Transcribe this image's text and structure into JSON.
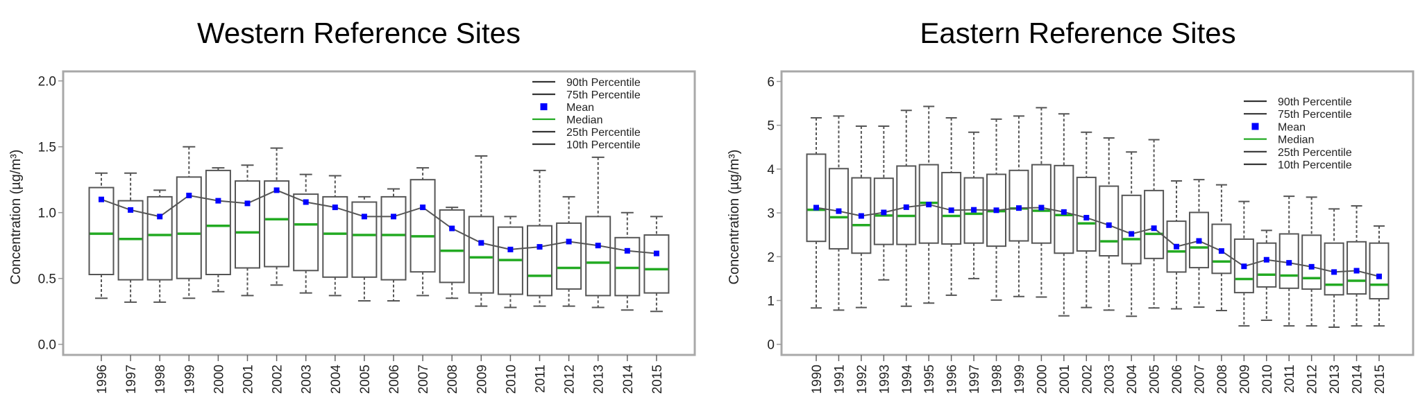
{
  "chart_data": [
    {
      "type": "box",
      "title": "Western Reference Sites",
      "xlabel": "",
      "ylabel": "Concentration (µg/m³)",
      "ylim": [
        -0.05,
        2.05
      ],
      "yticks": [
        "0.0",
        "0.5",
        "1.0",
        "1.5",
        "2.0"
      ],
      "ytick_values": [
        0,
        0.5,
        1.0,
        1.5,
        2.0
      ],
      "grid": false,
      "legend_position": "top-right",
      "legend": [
        {
          "label": "90th Percentile",
          "symbol": "line",
          "color": "#333333"
        },
        {
          "label": "75th Percentile",
          "symbol": "line",
          "color": "#333333"
        },
        {
          "label": "Mean",
          "symbol": "square",
          "color": "#0000ff"
        },
        {
          "label": "Median",
          "symbol": "line",
          "color": "#22aa22"
        },
        {
          "label": "25th Percentile",
          "symbol": "line",
          "color": "#333333"
        },
        {
          "label": "10th Percentile",
          "symbol": "line",
          "color": "#333333"
        }
      ],
      "categories": [
        "1996",
        "1997",
        "1998",
        "1999",
        "2000",
        "2001",
        "2002",
        "2003",
        "2004",
        "2005",
        "2006",
        "2007",
        "2008",
        "2009",
        "2010",
        "2011",
        "2012",
        "2013",
        "2014",
        "2015"
      ],
      "p90": [
        1.3,
        1.3,
        1.17,
        1.5,
        1.34,
        1.36,
        1.49,
        1.29,
        1.28,
        1.12,
        1.18,
        1.34,
        1.04,
        1.43,
        0.97,
        1.32,
        1.12,
        1.42,
        1.0,
        0.97
      ],
      "p75": [
        1.19,
        1.09,
        1.12,
        1.27,
        1.32,
        1.24,
        1.24,
        1.14,
        1.12,
        1.08,
        1.12,
        1.25,
        1.02,
        0.97,
        0.89,
        0.9,
        0.92,
        0.97,
        0.81,
        0.83
      ],
      "mean": [
        1.1,
        1.02,
        0.97,
        1.13,
        1.09,
        1.07,
        1.17,
        1.08,
        1.04,
        0.97,
        0.97,
        1.04,
        0.88,
        0.77,
        0.72,
        0.74,
        0.78,
        0.75,
        0.71,
        0.69
      ],
      "median": [
        0.84,
        0.8,
        0.83,
        0.84,
        0.9,
        0.85,
        0.95,
        0.91,
        0.84,
        0.83,
        0.83,
        0.82,
        0.71,
        0.66,
        0.64,
        0.52,
        0.58,
        0.62,
        0.58,
        0.57
      ],
      "p25": [
        0.53,
        0.49,
        0.49,
        0.5,
        0.53,
        0.58,
        0.59,
        0.56,
        0.51,
        0.51,
        0.49,
        0.55,
        0.47,
        0.39,
        0.38,
        0.37,
        0.42,
        0.37,
        0.37,
        0.39
      ],
      "p10": [
        0.35,
        0.32,
        0.32,
        0.35,
        0.4,
        0.37,
        0.45,
        0.39,
        0.37,
        0.33,
        0.33,
        0.37,
        0.35,
        0.29,
        0.28,
        0.29,
        0.29,
        0.28,
        0.26,
        0.25
      ]
    },
    {
      "type": "box",
      "title": "Eastern Reference Sites",
      "xlabel": "",
      "ylabel": "Concentration (µg/m³)",
      "ylim": [
        -0.25,
        6.25
      ],
      "yticks": [
        "0",
        "1",
        "2",
        "3",
        "4",
        "5",
        "6"
      ],
      "ytick_values": [
        0,
        1,
        2,
        3,
        4,
        5,
        6
      ],
      "grid": false,
      "legend_position": "top-right",
      "legend": [
        {
          "label": "90th Percentile",
          "symbol": "line",
          "color": "#333333"
        },
        {
          "label": "75th Percentile",
          "symbol": "line",
          "color": "#333333"
        },
        {
          "label": "Mean",
          "symbol": "square",
          "color": "#0000ff"
        },
        {
          "label": "Median",
          "symbol": "line",
          "color": "#22aa22"
        },
        {
          "label": "25th Percentile",
          "symbol": "line",
          "color": "#333333"
        },
        {
          "label": "10th Percentile",
          "symbol": "line",
          "color": "#333333"
        }
      ],
      "categories": [
        "1990",
        "1991",
        "1992",
        "1993",
        "1994",
        "1995",
        "1996",
        "1997",
        "1998",
        "1999",
        "2000",
        "2001",
        "2002",
        "2003",
        "2004",
        "2005",
        "2006",
        "2007",
        "2008",
        "2009",
        "2010",
        "2011",
        "2012",
        "2013",
        "2014",
        "2015"
      ],
      "p90": [
        5.17,
        5.21,
        4.98,
        4.98,
        5.34,
        5.43,
        5.17,
        4.84,
        5.14,
        5.21,
        5.4,
        5.26,
        4.84,
        4.71,
        4.39,
        4.67,
        3.73,
        3.76,
        3.64,
        3.26,
        2.6,
        3.38,
        3.36,
        3.09,
        3.16,
        2.7
      ],
      "p75": [
        4.34,
        4.01,
        3.8,
        3.79,
        4.07,
        4.1,
        3.92,
        3.8,
        3.88,
        3.97,
        4.1,
        4.08,
        3.81,
        3.61,
        3.4,
        3.51,
        2.81,
        3.01,
        2.74,
        2.4,
        2.31,
        2.52,
        2.49,
        2.31,
        2.34,
        2.31
      ],
      "mean": [
        3.12,
        3.04,
        2.93,
        3.01,
        3.13,
        3.19,
        3.06,
        3.07,
        3.06,
        3.11,
        3.12,
        3.02,
        2.89,
        2.72,
        2.52,
        2.65,
        2.23,
        2.36,
        2.13,
        1.78,
        1.93,
        1.86,
        1.77,
        1.65,
        1.68,
        1.55
      ],
      "median": [
        3.07,
        2.9,
        2.72,
        2.94,
        2.93,
        3.23,
        2.93,
        2.98,
        3.04,
        3.1,
        3.05,
        2.95,
        2.76,
        2.35,
        2.4,
        2.52,
        2.12,
        2.21,
        1.89,
        1.49,
        1.59,
        1.57,
        1.51,
        1.36,
        1.45,
        1.36
      ],
      "p25": [
        2.35,
        2.18,
        2.08,
        2.28,
        2.28,
        2.31,
        2.29,
        2.31,
        2.24,
        2.36,
        2.31,
        2.08,
        2.13,
        2.02,
        1.84,
        1.96,
        1.65,
        1.75,
        1.62,
        1.18,
        1.31,
        1.28,
        1.26,
        1.13,
        1.15,
        1.04
      ],
      "p10": [
        0.83,
        0.78,
        0.84,
        1.47,
        0.87,
        0.94,
        1.12,
        1.5,
        1.01,
        1.09,
        1.08,
        0.65,
        0.84,
        0.78,
        0.64,
        0.83,
        0.81,
        0.85,
        0.77,
        0.42,
        0.55,
        0.42,
        0.42,
        0.39,
        0.42,
        0.42
      ]
    }
  ]
}
